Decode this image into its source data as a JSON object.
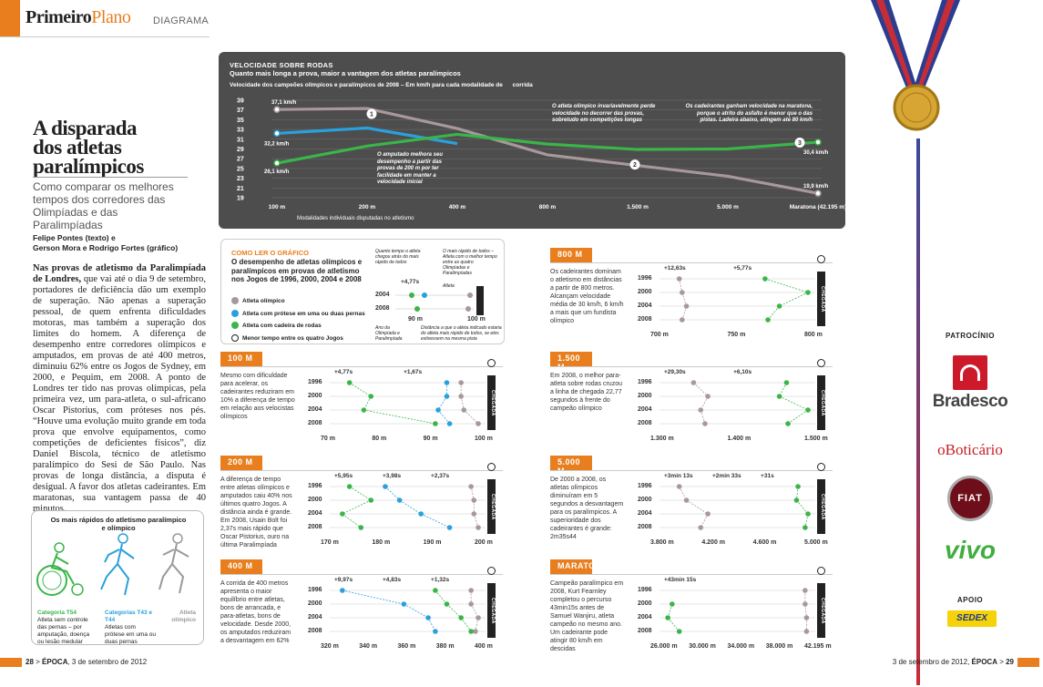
{
  "header": {
    "brand_bold": "Primeiro",
    "brand_light": "Plano",
    "section": "DIAGRAMA"
  },
  "article": {
    "title_l1": "A disparada",
    "title_l2": "dos atletas",
    "title_l3": "paralímpicos",
    "subtitle": "Como comparar os melhores tempos dos corredores das Olimpíadas e das Paralimpíadas",
    "credit1": "Felipe Pontes (texto) e",
    "credit2": "Gerson Mora e Rodrigo Fortes (gráfico)",
    "body_lead": "Nas provas de atletismo da Paralimpíada de Londres,",
    "body": " que vai até o dia 9 de setembro, portadores de deficiência dão um exemplo de superação. Não apenas a superação pessoal, de quem enfrenta dificuldades motoras, mas também a superação dos limites do homem. A diferença de desempenho entre corredores olímpicos e amputados, em provas de até 400 metros, diminuiu 62% entre os Jogos de Sydney, em 2000, e Pequim, em 2008. A ponto de Londres ter tido nas provas olímpicas, pela primeira vez, um para-atleta, o sul-africano Oscar Pistorius, com próteses nos pés. “Houve uma evolução muito grande em toda prova que envolve equipamentos, como competições de deficientes físicos”, diz Daniel Biscola, técnico de atletismo paralímpico do Sesi de São Paulo. Nas provas de longa distância, a disputa é desigual. A favor dos atletas cadeirantes. Em maratonas, sua vantagem passa de 40 minutos."
  },
  "figures": {
    "title": "Os mais rápidos do atletismo paralímpico e olímpico",
    "c1_title": "Categoria T54",
    "c1_text": "Atleta sem controle das pernas – por amputação, doença ou lesão medular",
    "c2_title": "Categorias T43 e T44",
    "c2_text": "Atletas com prótese em uma ou duas pernas",
    "c3_title": "Atleta olímpico"
  },
  "colors": {
    "olympic": "#a8989a",
    "prosthesis": "#2aa0dc",
    "wheelchair": "#3bb54a",
    "accent": "#e87e1e",
    "dark": "#4d4d4d"
  },
  "main_chart": {
    "title": "VELOCIDADE SOBRE RODAS",
    "subtitle": "Quanto mais longa a prova, maior a vantagem dos atletas paralímpicos",
    "desc": "Velocidade dos campeões olímpicos e paralímpicos de 2008 – Em km/h para cada modalidade de      corrida",
    "xnote": "Modalidades individuais disputadas no atletismo",
    "ann1": "O amputado melhora seu desempenho a partir das provas de 200 m por ter facilidade em manter a velocidade inicial",
    "ann2": "O atleta olímpico invariavelmente perde velocidade no decorrer das provas, sobretudo em competições longas",
    "ann3": "Os cadeirantes ganham velocidade na maratona, porque o atrito do asfalto é menor que o das pistas. Ladeira abaixo, atingem até 80 km/h",
    "lbl_o1": "37,1 km/h",
    "lbl_p1": "32,2 km/h",
    "lbl_w1": "26,1 km/h",
    "lbl_w2": "30,4 km/h",
    "lbl_o2": "19,9 km/h",
    "n1": "1",
    "n2": "2",
    "n3": "3"
  },
  "chart_data": [
    {
      "type": "line",
      "title": "VELOCIDADE SOBRE RODAS",
      "categories": [
        "100 m",
        "200 m",
        "400 m",
        "800 m",
        "1.500 m",
        "5.000 m",
        "Maratona (42.195 m)"
      ],
      "xlabel": "Modalidades individuais disputadas no atletismo",
      "ylabel": "km/h",
      "ylim": [
        19,
        39
      ],
      "yticks": [
        19,
        21,
        23,
        25,
        27,
        29,
        31,
        33,
        35,
        37,
        39
      ],
      "grid": true,
      "series": [
        {
          "name": "Atleta olímpico",
          "values": [
            37.1,
            37.3,
            33.2,
            27.8,
            25.6,
            23.4,
            19.9
          ]
        },
        {
          "name": "Atleta com prótese em uma ou duas pernas",
          "values": [
            32.2,
            33.3,
            30.1,
            null,
            null,
            null,
            null
          ]
        },
        {
          "name": "Atleta com cadeira de rodas",
          "values": [
            26.1,
            29.6,
            32.0,
            30.0,
            28.9,
            29.0,
            30.4
          ]
        }
      ]
    }
  ],
  "howto": {
    "title": "COMO LER O GRÁFICO",
    "subtitle": "O desempenho de atletas olímpicos e paralímpicos em provas de atletismo nos Jogos de 1996, 2000, 2004 e 2008",
    "leg_o": "Atleta olímpico",
    "leg_p": "Atleta com prótese em uma ou duas pernas",
    "leg_w": "Atleta com cadeira de rodas",
    "leg_s": "Menor tempo entre os quatro Jogos",
    "n1": "Quanto tempo o atleta chegou atrás do mais rápido de todos",
    "n2": "O mais rápido de todos – Atleta com o melhor tempo entre as quatro Olimpíadas e Paralimpíadas",
    "n3": "Atleta",
    "n4": "Ano da Olimpíada e Paralimpíada",
    "n5": "Distância a que o atleta indicado estaria do atleta mais rápido de todos, se eles estivessem na mesma pista",
    "gap": "+4,77s",
    "y1": "2004",
    "y2": "2008",
    "x1": "90 m",
    "x2": "100 m"
  },
  "panels": [
    {
      "name": "100 M",
      "text": "Mesmo com dificuldade para acelerar, os cadeirantes reduziram em 10% a diferença de tempo em relação aos velocistas olímpicos",
      "gaps": [
        "+4,77s",
        "+1,67s"
      ],
      "years": [
        "1996",
        "2000",
        "2004",
        "2008"
      ],
      "ticks": [
        "70 m",
        "80 m",
        "90 m",
        "100 m"
      ]
    },
    {
      "name": "200 M",
      "text": "A diferença de tempo entre atletas olímpicos e amputados caiu 40% nos últimos quatro Jogos. A distância ainda é grande. Em 2008, Usain Bolt foi 2,37s mais rápido que Oscar Pistorius, ouro na última Paralimpíada",
      "gaps": [
        "+5,95s",
        "+3,98s",
        "+2,37s"
      ],
      "years": [
        "1996",
        "2000",
        "2004",
        "2008"
      ],
      "ticks": [
        "170 m",
        "180 m",
        "190 m",
        "200 m"
      ]
    },
    {
      "name": "400 M",
      "text": "A corrida de 400 metros apresenta o maior equilíbrio entre atletas, bons de arrancada, e para-atletas, bons de velocidade. Desde 2000, os amputados reduziram a desvantagem em 62%",
      "gaps": [
        "+9,97s",
        "+4,83s",
        "+1,32s"
      ],
      "years": [
        "1996",
        "2000",
        "2004",
        "2008"
      ],
      "ticks": [
        "320 m",
        "340 m",
        "360 m",
        "380 m",
        "400 m"
      ]
    },
    {
      "name": "800 M",
      "text": "Os cadeirantes dominam o atletismo em distâncias a partir de 800 metros. Alcançam velocidade média de 30 km/h, 6 km/h a mais que um fundista olímpico",
      "gaps": [
        "+12,63s",
        "+5,77s"
      ],
      "years": [
        "1996",
        "2000",
        "2004",
        "2008"
      ],
      "ticks": [
        "700 m",
        "750 m",
        "800 m"
      ]
    },
    {
      "name": "1.500 M",
      "text": "Em 2008, o melhor para-atleta sobre rodas cruzou a linha de chegada 22,77 segundos à frente do campeão olímpico",
      "gaps": [
        "+29,30s",
        "+6,10s"
      ],
      "years": [
        "1996",
        "2000",
        "2004",
        "2008"
      ],
      "ticks": [
        "1.300 m",
        "1.400 m",
        "1.500 m"
      ]
    },
    {
      "name": "5.000 M",
      "text": "De 2000 a 2008, os atletas olímpicos diminuíram em 5 segundos a desvantagem para os paralímpicos. A superioridade dos cadeirantes é grande: 2m35s44",
      "gaps": [
        "+3min 13s",
        "+2min 33s",
        "+31s"
      ],
      "years": [
        "1996",
        "2000",
        "2004",
        "2008"
      ],
      "ticks": [
        "3.800 m",
        "4.200 m",
        "4.600 m",
        "5.000 m"
      ]
    },
    {
      "name": "MARATONA",
      "text": "Campeão paralímpico em 2008, Kurt Fearnley completou o percurso 43min15s antes de Samuel Wanjiru, atleta campeão no mesmo ano. Um cadeirante pode atingir 80 km/h em descidas",
      "gaps": [
        "+43min 15s"
      ],
      "years": [
        "1996",
        "2000",
        "2004",
        "2008"
      ],
      "ticks": [
        "26.000 m",
        "30.000 m",
        "34.000 m",
        "38.000 m",
        "42.195 m"
      ]
    }
  ],
  "chegada": "CHEGADA",
  "sponsors": {
    "title": "PATROCÍNIO",
    "s1": "Bradesco",
    "s2": "oBoticário",
    "s3": "FIAT",
    "s4": "vivo",
    "apoio": "APOIO",
    "s5": "SEDEX"
  },
  "footer": {
    "left_page": "28",
    "left_brand": "ÉPOCA",
    "left_date": ", 3 de setembro de 2012",
    "right_date": "3 de setembro de 2012, ",
    "right_brand": "ÉPOCA",
    "right_page": "29"
  }
}
